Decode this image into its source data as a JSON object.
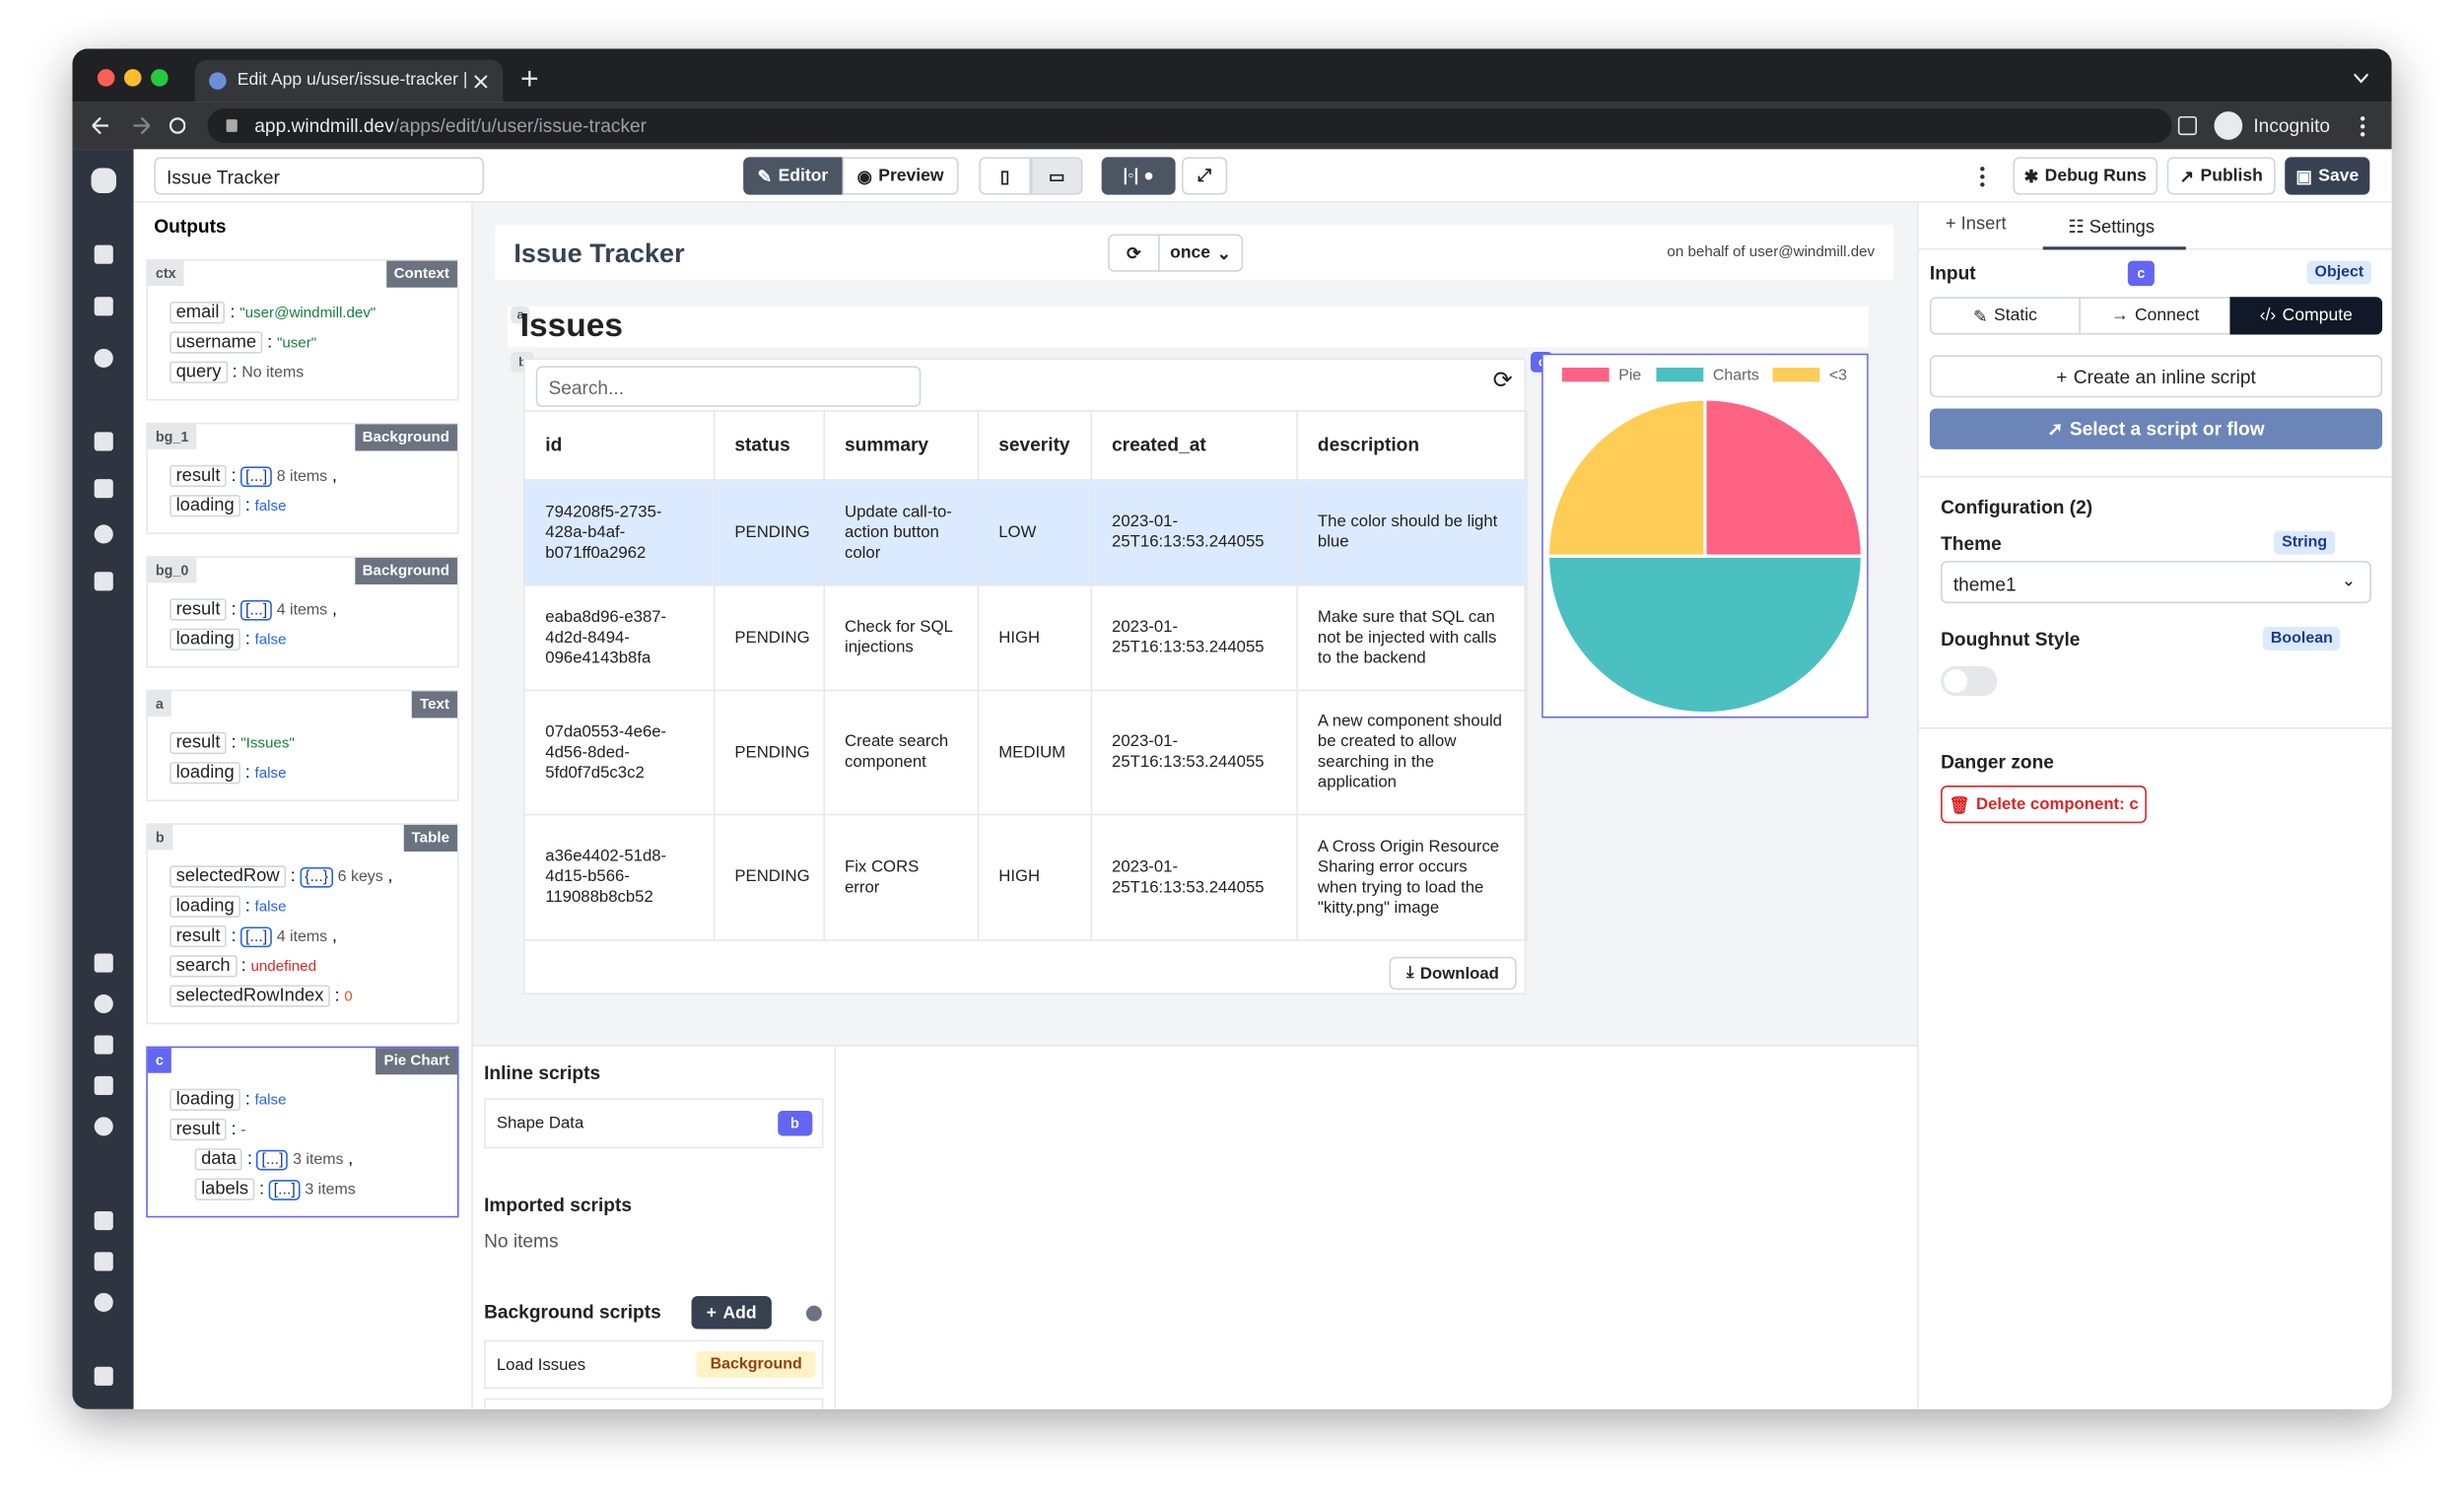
{
  "browser": {
    "tab_title": "Edit App u/user/issue-tracker |",
    "url_host": "app.windmill.dev",
    "url_path": "/apps/edit/u/user/issue-tracker",
    "profile": "Incognito"
  },
  "topbar": {
    "app_name": "Issue Tracker",
    "editor": "Editor",
    "preview": "Preview",
    "debug_runs": "Debug Runs",
    "publish": "Publish",
    "save": "Save"
  },
  "outputs": {
    "title": "Outputs",
    "separator": ":",
    "panels": [
      {
        "id": "ctx",
        "kind": "Context",
        "rows": [
          {
            "key": "email",
            "value": "\"user@windmill.dev\"",
            "tone": "string"
          },
          {
            "key": "username",
            "value": "\"user\"",
            "tone": "string"
          },
          {
            "key": "query",
            "value": "No items",
            "tone": "plain"
          }
        ]
      },
      {
        "id": "bg_1",
        "kind": "Background",
        "rows": [
          {
            "key": "result",
            "badge": "[...]",
            "value": "8 items",
            "tone": "plain",
            "tail": ","
          },
          {
            "key": "loading",
            "value": "false",
            "tone": "bool"
          }
        ]
      },
      {
        "id": "bg_0",
        "kind": "Background",
        "rows": [
          {
            "key": "result",
            "badge": "[...]",
            "value": "4 items",
            "tone": "plain",
            "tail": ","
          },
          {
            "key": "loading",
            "value": "false",
            "tone": "bool"
          }
        ]
      },
      {
        "id": "a",
        "kind": "Text",
        "rows": [
          {
            "key": "result",
            "value": "\"Issues\"",
            "tone": "string"
          },
          {
            "key": "loading",
            "value": "false",
            "tone": "bool"
          }
        ]
      },
      {
        "id": "b",
        "kind": "Table",
        "rows": [
          {
            "key": "selectedRow",
            "badge": "{...}",
            "value": "6 keys",
            "tone": "plain",
            "tail": ","
          },
          {
            "key": "loading",
            "value": "false",
            "tone": "bool"
          },
          {
            "key": "result",
            "badge": "[...]",
            "value": "4 items",
            "tone": "plain",
            "tail": ","
          },
          {
            "key": "search",
            "value": "undefined",
            "tone": "undef"
          },
          {
            "key": "selectedRowIndex",
            "value": "0",
            "tone": "num"
          }
        ]
      },
      {
        "id": "c",
        "kind": "Pie Chart",
        "selected": true,
        "rows": [
          {
            "key": "loading",
            "value": "false",
            "tone": "bool"
          },
          {
            "key": "result",
            "value": "-",
            "tone": "plain"
          },
          {
            "key": "data",
            "badge": "[...]",
            "value": "3 items",
            "tone": "plain",
            "tail": ",",
            "indent": true
          },
          {
            "key": "labels",
            "badge": "[...]",
            "value": "3 items",
            "tone": "plain",
            "indent": true
          }
        ]
      }
    ]
  },
  "canvas": {
    "title": "Issue Tracker",
    "refresh": "once",
    "behalf": "on behalf of user@windmill.dev",
    "text_id": "a",
    "text": "Issues",
    "table_id": "b",
    "search": "Search...",
    "columns": [
      "id",
      "status",
      "summary",
      "severity",
      "created_at",
      "description"
    ],
    "rows": [
      [
        "794208f5-2735-428a-b4af-b071ff0a2962",
        "PENDING",
        "Update call-to-action button color",
        "LOW",
        "2023-01-25T16:13:53.244055",
        "The color should be light blue"
      ],
      [
        "eaba8d96-e387-4d2d-8494-096e4143b8fa",
        "PENDING",
        "Check for SQL injections",
        "HIGH",
        "2023-01-25T16:13:53.244055",
        "Make sure that SQL can not be injected with calls to the backend"
      ],
      [
        "07da0553-4e6e-4d56-8ded-5fd0f7d5c3c2",
        "PENDING",
        "Create search component",
        "MEDIUM",
        "2023-01-25T16:13:53.244055",
        "A new component should be created to allow searching in the application"
      ],
      [
        "a36e4402-51d8-4d15-b566-119088b8cb52",
        "PENDING",
        "Fix CORS error",
        "HIGH",
        "2023-01-25T16:13:53.244055",
        "A Cross Origin Resource Sharing error occurs when trying to load the \"kitty.png\" image"
      ]
    ],
    "download": "Download",
    "chart_id": "c"
  },
  "chart_data": {
    "type": "pie",
    "categories": [
      "Pie",
      "Charts",
      "<3"
    ],
    "values": [
      25,
      50,
      25
    ],
    "colors": [
      "#ff6384",
      "#4bc0c0",
      "#ffcd56"
    ]
  },
  "scripts": {
    "inline_title": "Inline scripts",
    "inline": [
      {
        "name": "Shape Data",
        "tag": "b"
      }
    ],
    "imported_title": "Imported scripts",
    "imported_empty": "No items",
    "background_title": "Background scripts",
    "add": "Add",
    "background": [
      {
        "name": "Load Issues",
        "tag": "Background"
      }
    ]
  },
  "settings": {
    "tabs": [
      "Insert",
      "Settings"
    ],
    "input_label": "Input",
    "component_id": "c",
    "input_type": "Object",
    "modes": [
      "Static",
      "Connect",
      "Compute"
    ],
    "create_inline": "Create an inline script",
    "select_script": "Select a script or flow",
    "config_title": "Configuration (2)",
    "theme_label": "Theme",
    "theme_type": "String",
    "theme_value": "theme1",
    "doughnut_label": "Doughnut Style",
    "doughnut_type": "Boolean",
    "danger_title": "Danger zone",
    "delete": "Delete component: c"
  }
}
